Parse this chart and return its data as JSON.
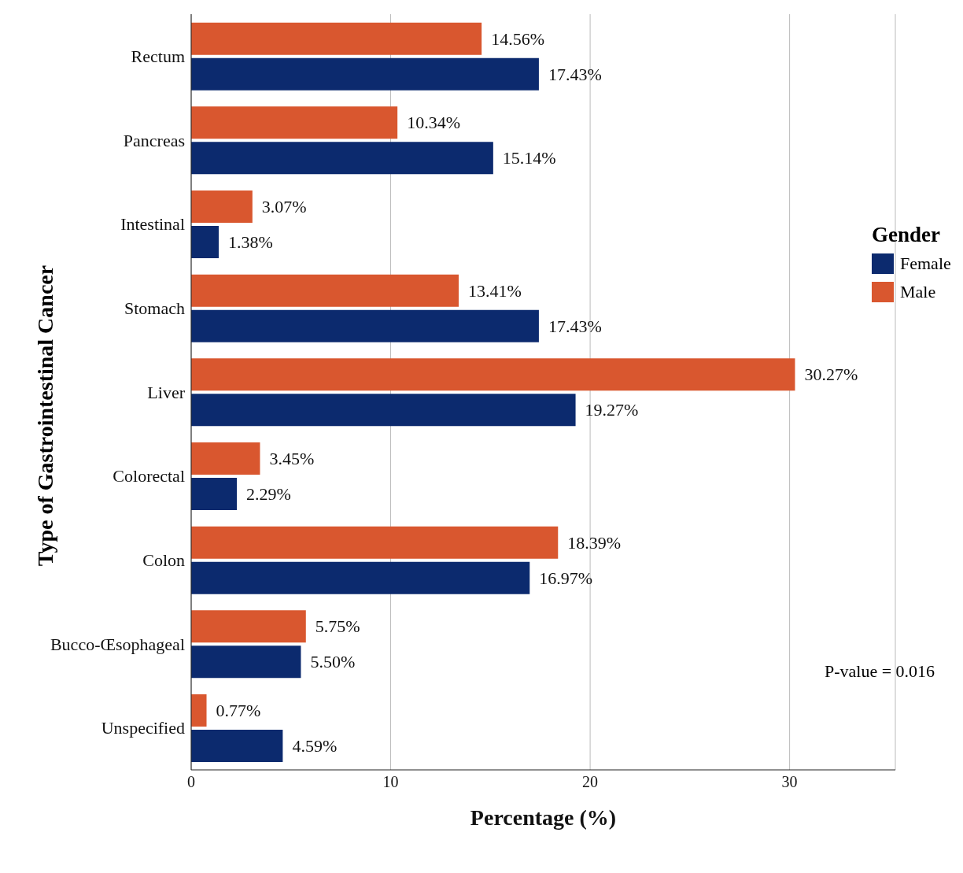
{
  "chart_data": {
    "type": "bar",
    "orientation": "horizontal",
    "ylabel": "Type of Gastrointestinal Cancer",
    "xlabel": "Percentage (%)",
    "legend_title": "Gender",
    "legend": "right",
    "grid": "x",
    "categories": [
      "Rectum",
      "Pancreas",
      "Intestinal",
      "Stomach",
      "Liver",
      "Colorectal",
      "Colon",
      "Bucco-Œsophageal",
      "Unspecified"
    ],
    "series": [
      {
        "name": "Female",
        "color": "#0c2a6e",
        "values": [
          17.43,
          15.14,
          1.38,
          17.43,
          19.27,
          2.29,
          16.97,
          5.5,
          4.59
        ],
        "value_labels": [
          "17.43%",
          "15.14%",
          "1.38%",
          "17.43%",
          "19.27%",
          "2.29%",
          "16.97%",
          "5.50%",
          "4.59%"
        ]
      },
      {
        "name": "Male",
        "color": "#d9572f",
        "values": [
          14.56,
          10.34,
          3.07,
          13.41,
          30.27,
          3.45,
          18.39,
          5.75,
          0.77
        ],
        "value_labels": [
          "14.56%",
          "10.34%",
          "3.07%",
          "13.41%",
          "30.27%",
          "3.45%",
          "18.39%",
          "5.75%",
          "0.77%"
        ]
      }
    ],
    "xlim": [
      0,
      35.3
    ],
    "xticks": [
      0,
      10,
      20,
      30
    ],
    "annotations": [
      "P-value = 0.016"
    ]
  }
}
